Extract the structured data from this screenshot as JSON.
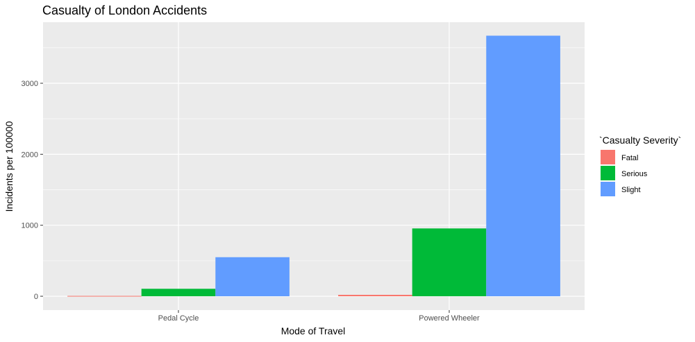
{
  "chart_data": {
    "type": "bar",
    "title": "Casualty of London Accidents",
    "xlabel": "Mode of Travel",
    "ylabel": "Incidents per 100000",
    "categories": [
      "Pedal Cycle",
      "Powered Wheeler"
    ],
    "series": [
      {
        "name": "Fatal",
        "values": [
          5,
          20
        ],
        "color": "#F8766D"
      },
      {
        "name": "Serious",
        "values": [
          105,
          955
        ],
        "color": "#00BA38"
      },
      {
        "name": "Slight",
        "values": [
          550,
          3670
        ],
        "color": "#619CFF"
      }
    ],
    "ylim": [
      -195,
      3860
    ],
    "yticks": [
      0,
      1000,
      2000,
      3000
    ],
    "ytick_labels": [
      "0",
      "1000",
      "2000",
      "3000"
    ],
    "legend": {
      "title": "`Casualty Severity`",
      "placement": "right"
    },
    "grid": true,
    "panel_color": "#EBEBEB"
  }
}
